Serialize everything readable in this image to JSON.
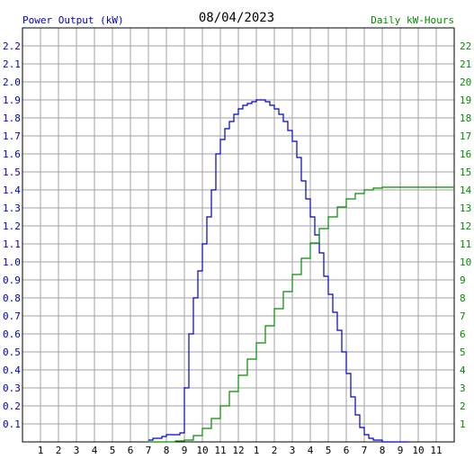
{
  "chart_data": {
    "type": "line",
    "title": "08/04/2023",
    "left_axis_label": "Power Output (kW)",
    "right_axis_label": "Daily kW-Hours",
    "x_tick_labels": [
      "1",
      "2",
      "3",
      "4",
      "5",
      "6",
      "7",
      "8",
      "9",
      "10",
      "11",
      "12",
      "1",
      "2",
      "3",
      "4",
      "5",
      "6",
      "7",
      "8",
      "9",
      "10",
      "11"
    ],
    "x_range_hours": [
      0,
      24
    ],
    "left_ylim": [
      0,
      2.3
    ],
    "left_ticks": [
      "0.1",
      "0.2",
      "0.3",
      "0.4",
      "0.5",
      "0.6",
      "0.7",
      "0.8",
      "0.9",
      "1.0",
      "1.1",
      "1.2",
      "1.3",
      "1.4",
      "1.5",
      "1.6",
      "1.7",
      "1.8",
      "1.9",
      "2.0",
      "2.1",
      "2.2"
    ],
    "right_ylim": [
      0,
      23
    ],
    "right_ticks": [
      "1",
      "2",
      "3",
      "4",
      "5",
      "6",
      "7",
      "8",
      "9",
      "10",
      "11",
      "12",
      "13",
      "14",
      "15",
      "16",
      "17",
      "18",
      "19",
      "20",
      "21",
      "22"
    ],
    "grid": true,
    "colors": {
      "power": "#0000c8",
      "energy": "#008c00",
      "grid": "#a0a0a0",
      "left_axis_text": "#0000c8",
      "right_axis_text": "#008c00",
      "border": "#000000"
    },
    "series": [
      {
        "axis": "left",
        "x": [
          7.0,
          7.25,
          7.5,
          7.75,
          8.0,
          8.25,
          8.5,
          8.75,
          9.0,
          9.25,
          9.5,
          9.75,
          10.0,
          10.25,
          10.5,
          10.75,
          11.0,
          11.25,
          11.5,
          11.75,
          12.0,
          12.25,
          12.5,
          12.75,
          13.0,
          13.25,
          13.5,
          13.75,
          14.0,
          14.25,
          14.5,
          14.75,
          15.0,
          15.25,
          15.5,
          15.75,
          16.0,
          16.25,
          16.5,
          16.75,
          17.0,
          17.25,
          17.5,
          17.75,
          18.0,
          18.25,
          18.5,
          18.75,
          19.0,
          19.25,
          19.5,
          19.75,
          20.0,
          20.25,
          20.5,
          20.75,
          21.0,
          21.25,
          21.5
        ],
        "values": [
          0.01,
          0.02,
          0.02,
          0.03,
          0.04,
          0.04,
          0.04,
          0.05,
          0.3,
          0.6,
          0.8,
          0.95,
          1.1,
          1.25,
          1.4,
          1.6,
          1.68,
          1.74,
          1.78,
          1.82,
          1.85,
          1.87,
          1.88,
          1.89,
          1.9,
          1.9,
          1.89,
          1.87,
          1.85,
          1.82,
          1.78,
          1.73,
          1.67,
          1.58,
          1.45,
          1.35,
          1.25,
          1.15,
          1.05,
          0.92,
          0.82,
          0.72,
          0.62,
          0.5,
          0.38,
          0.25,
          0.15,
          0.08,
          0.04,
          0.02,
          0.01,
          0.01,
          0.0,
          0.0,
          0.0,
          0.0,
          0.0,
          0.0,
          0.0
        ]
      },
      {
        "axis": "right",
        "x": [
          7.0,
          7.5,
          8.0,
          8.5,
          9.0,
          9.5,
          10.0,
          10.5,
          11.0,
          11.5,
          12.0,
          12.5,
          13.0,
          13.5,
          14.0,
          14.5,
          15.0,
          15.5,
          16.0,
          16.5,
          17.0,
          17.5,
          18.0,
          18.5,
          19.0,
          19.5,
          20.0,
          20.5,
          21.0,
          22.0,
          23.0,
          24.0
        ],
        "values": [
          0.0,
          0.0,
          0.0,
          0.05,
          0.1,
          0.35,
          0.75,
          1.3,
          2.0,
          2.8,
          3.7,
          4.6,
          5.5,
          6.45,
          7.4,
          8.35,
          9.3,
          10.2,
          11.05,
          11.85,
          12.5,
          13.05,
          13.5,
          13.8,
          14.0,
          14.1,
          14.15,
          14.15,
          14.15,
          14.15,
          14.15,
          14.15
        ]
      }
    ]
  }
}
